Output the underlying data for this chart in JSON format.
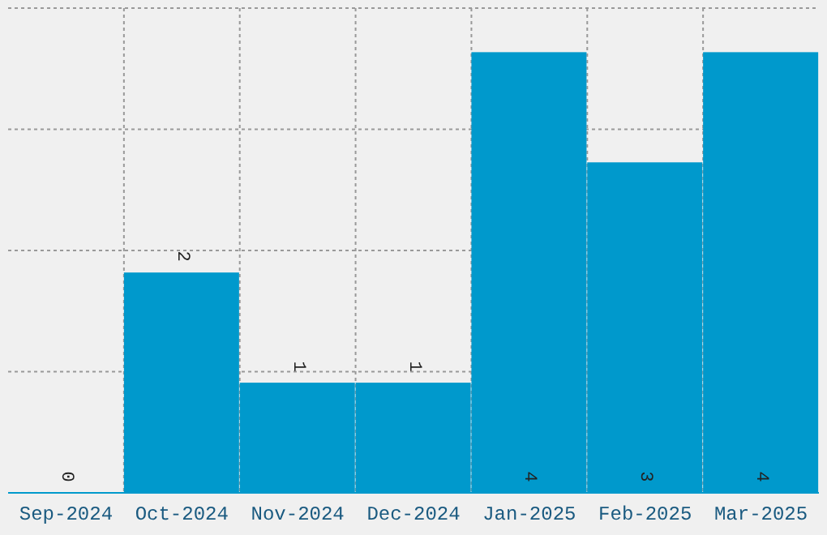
{
  "chart_data": {
    "type": "bar",
    "categories": [
      "Sep-2024",
      "Oct-2024",
      "Nov-2024",
      "Dec-2024",
      "Jan-2025",
      "Feb-2025",
      "Mar-2025"
    ],
    "values": [
      0,
      2,
      1,
      1,
      4,
      3,
      4
    ],
    "color": "#0099cc",
    "ylim": [
      0,
      4.4
    ],
    "yticks": [
      {
        "value": 1.1,
        "label": null
      },
      {
        "value": 2.2,
        "label": null
      },
      {
        "value": 3.3,
        "label": null
      },
      {
        "value": 4.4,
        "label": null
      }
    ],
    "tick_labels": "x",
    "grid": true,
    "data_labels": true
  }
}
